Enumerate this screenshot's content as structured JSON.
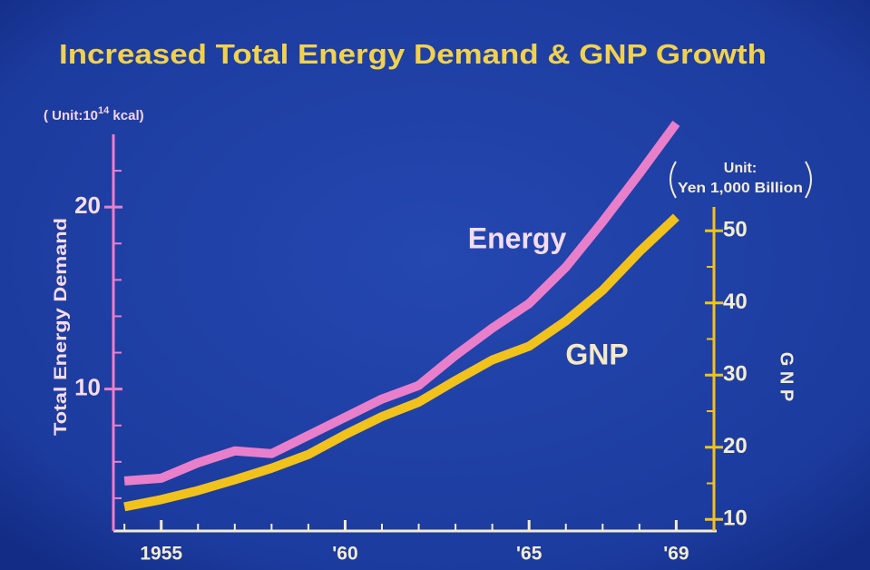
{
  "chart_data": {
    "type": "line",
    "title": "Increased Total Energy Demand & GNP Growth",
    "y_unit": {
      "text": "( Unit:10",
      "superscript": "14",
      "suffix": " kcal)"
    },
    "y2_unit": [
      "Unit:",
      "Yen 1,000 Billion"
    ],
    "ylabel": "Total Energy Demand",
    "y2label": "G N P",
    "x": [
      1954,
      1955,
      1956,
      1957,
      1958,
      1959,
      1960,
      1961,
      1962,
      1963,
      1964,
      1965,
      1966,
      1967,
      1968,
      1969
    ],
    "series": [
      {
        "name": "Energy",
        "color": "#e97fcb",
        "axis": "y",
        "values": [
          4.95,
          5.1,
          5.95,
          6.6,
          6.45,
          7.45,
          8.45,
          9.45,
          10.2,
          11.85,
          13.35,
          14.7,
          16.7,
          19.2,
          21.85,
          24.6
        ]
      },
      {
        "name": "GNP",
        "color": "#f2c21c",
        "axis": "y2",
        "values": [
          11.75,
          12.75,
          14,
          15.5,
          17.1,
          19,
          21.75,
          24.25,
          26.25,
          29.25,
          32.1,
          34,
          37.5,
          41.75,
          47.1,
          51.9
        ]
      }
    ],
    "xlim": [
      1953.7,
      1970.1
    ],
    "xticks": [
      1955,
      {
        "value": 1960,
        "label": "'60"
      },
      {
        "value": 1965,
        "label": "'65"
      },
      {
        "value": 1969,
        "label": "'69"
      }
    ],
    "xminor_ticks": [
      1954,
      1956,
      1957,
      1958,
      1959,
      1961,
      1962,
      1963,
      1964,
      1966,
      1967,
      1968
    ],
    "ylim": [
      2.2,
      24
    ],
    "yticks": [
      10,
      20
    ],
    "yminor_ticks": [
      4,
      6,
      8,
      12,
      14,
      16,
      18,
      22
    ],
    "y2lim": [
      8.4,
      53.3
    ],
    "y2ticks": [
      10,
      20,
      30,
      40,
      50
    ],
    "y2minor_ticks": [
      15,
      25,
      35,
      45
    ]
  }
}
